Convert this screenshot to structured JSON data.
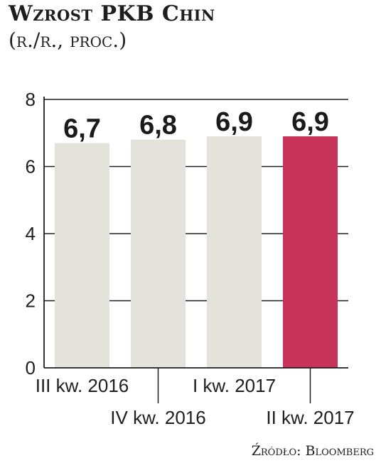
{
  "header": {
    "title": "Wzrost PKB Chin",
    "subtitle": "(r./r., proc.)"
  },
  "footer": {
    "source": "Źródło: Bloomberg"
  },
  "colors": {
    "bar": "#e3e3dc",
    "highlight": "#c8335a",
    "axis": "#1e1e1e"
  },
  "chart_data": {
    "type": "bar",
    "categories": [
      "III kw. 2016",
      "IV kw. 2016",
      "I kw. 2017",
      "II kw. 2017"
    ],
    "values": [
      6.7,
      6.8,
      6.9,
      6.9
    ],
    "value_labels": [
      "6,7",
      "6,8",
      "6,9",
      "6,9"
    ],
    "highlight_index": 3,
    "ylim": [
      0,
      8
    ],
    "yticks": [
      0,
      2,
      4,
      6,
      8
    ],
    "title": "Wzrost PKB Chin",
    "xlabel": "",
    "ylabel": "",
    "grid": true
  }
}
